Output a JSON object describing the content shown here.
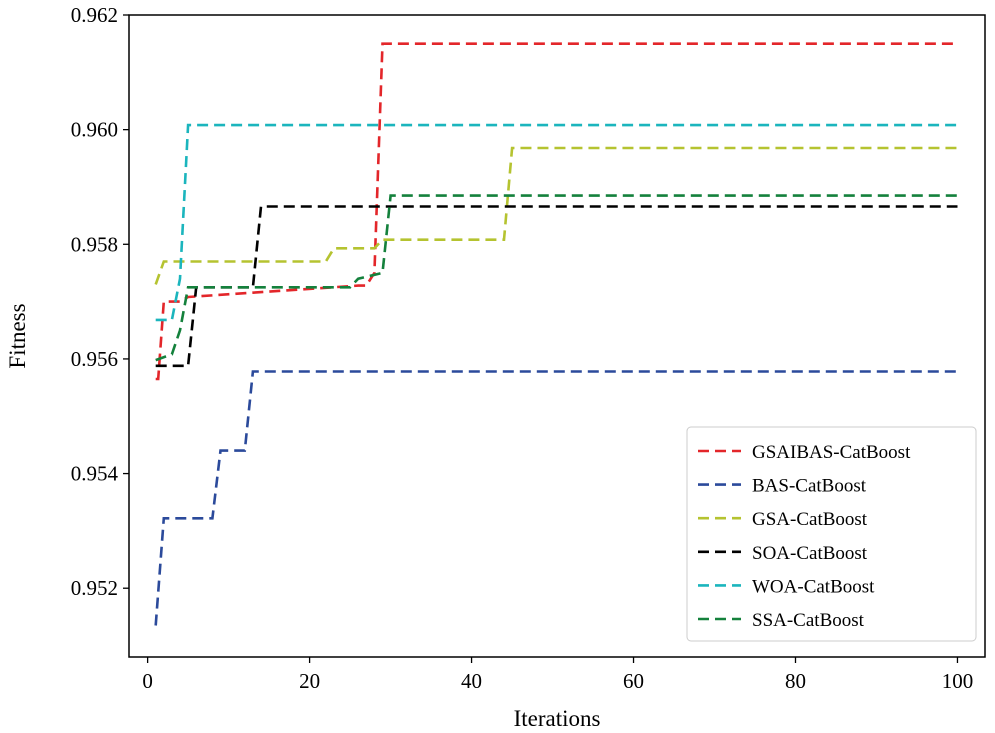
{
  "chart_data": {
    "type": "line",
    "title": "",
    "xlabel": "Iterations",
    "ylabel": "Fitness",
    "xlim": [
      -2.3,
      103.4
    ],
    "ylim": [
      0.9508,
      0.962
    ],
    "xticks": [
      0,
      20,
      40,
      60,
      80,
      100
    ],
    "xtick_labels": [
      "0",
      "20",
      "40",
      "60",
      "80",
      "100"
    ],
    "yticks": [
      0.952,
      0.954,
      0.956,
      0.958,
      0.96,
      0.962
    ],
    "ytick_labels": [
      "0.952",
      "0.954",
      "0.956",
      "0.958",
      "0.960",
      "0.962"
    ],
    "grid": false,
    "legend_position": "lower-right",
    "line_style": "dashed",
    "series": [
      {
        "name": "GSAIBAS-CatBoost",
        "color": "#e3262a",
        "points": [
          [
            1,
            0.95565
          ],
          [
            1.3,
            0.95565
          ],
          [
            2,
            0.957
          ],
          [
            4,
            0.957
          ],
          [
            5,
            0.95708
          ],
          [
            26,
            0.95728
          ],
          [
            27,
            0.95728
          ],
          [
            28,
            0.9575
          ],
          [
            29,
            0.9615
          ],
          [
            100,
            0.9615
          ]
        ]
      },
      {
        "name": "BAS-CatBoost",
        "color": "#2b4a9b",
        "points": [
          [
            1,
            0.95135
          ],
          [
            2,
            0.95322
          ],
          [
            8,
            0.95322
          ],
          [
            9,
            0.9544
          ],
          [
            12,
            0.9544
          ],
          [
            13,
            0.95578
          ],
          [
            100,
            0.95578
          ]
        ]
      },
      {
        "name": "GSA-CatBoost",
        "color": "#b5c330",
        "points": [
          [
            1,
            0.9573
          ],
          [
            2,
            0.9577
          ],
          [
            22,
            0.9577
          ],
          [
            23,
            0.95793
          ],
          [
            28,
            0.95793
          ],
          [
            29,
            0.95808
          ],
          [
            44,
            0.95808
          ],
          [
            45,
            0.95968
          ],
          [
            100,
            0.95968
          ]
        ]
      },
      {
        "name": "SOA-CatBoost",
        "color": "#000000",
        "points": [
          [
            1,
            0.95588
          ],
          [
            5,
            0.95588
          ],
          [
            6,
            0.95725
          ],
          [
            13,
            0.95725
          ],
          [
            14,
            0.95866
          ],
          [
            100,
            0.95866
          ]
        ]
      },
      {
        "name": "WOA-CatBoost",
        "color": "#1bb5bd",
        "points": [
          [
            1,
            0.95668
          ],
          [
            3,
            0.95668
          ],
          [
            4,
            0.9574
          ],
          [
            5,
            0.96008
          ],
          [
            100,
            0.96008
          ]
        ]
      },
      {
        "name": "SSA-CatBoost",
        "color": "#14813c",
        "points": [
          [
            1,
            0.95598
          ],
          [
            3,
            0.95608
          ],
          [
            4,
            0.9565
          ],
          [
            5,
            0.95725
          ],
          [
            25,
            0.95725
          ],
          [
            26,
            0.9574
          ],
          [
            29,
            0.9575
          ],
          [
            30,
            0.95885
          ],
          [
            100,
            0.95885
          ]
        ]
      }
    ]
  }
}
